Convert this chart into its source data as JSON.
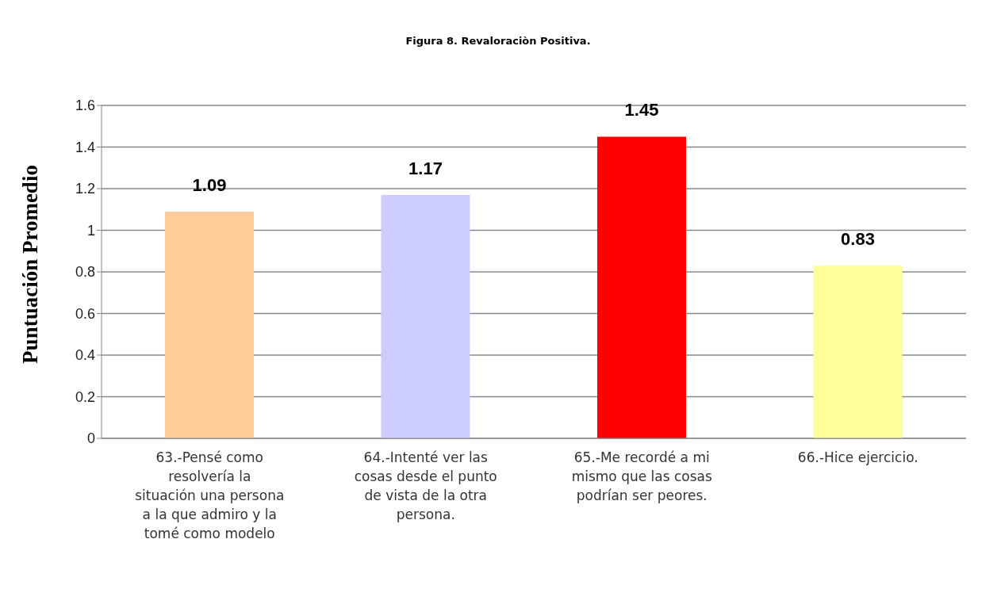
{
  "chart_data": {
    "type": "bar",
    "title": "Figura 8. Revaloraciòn Positiva.",
    "ylabel": "Puntuación  Promedio",
    "categories": [
      "63.-Pensé como resolvería la situación una persona a la que admiro y la tomé como modelo",
      "64.-Intenté ver las cosas desde el punto de vista de la otra persona.",
      "65.-Me recordé a mi mismo que las cosas podrían ser peores.",
      "66.-Hice ejercicio."
    ],
    "values": [
      1.09,
      1.17,
      1.45,
      0.83
    ],
    "colors": [
      "#ffcc99",
      "#ccccff",
      "#ff0000",
      "#ffff99"
    ],
    "ylim": [
      0,
      1.6
    ],
    "yticks": [
      0,
      0.2,
      0.4,
      0.6,
      0.8,
      1,
      1.2,
      1.4,
      1.6
    ],
    "grid": "y",
    "data_labels": true
  }
}
